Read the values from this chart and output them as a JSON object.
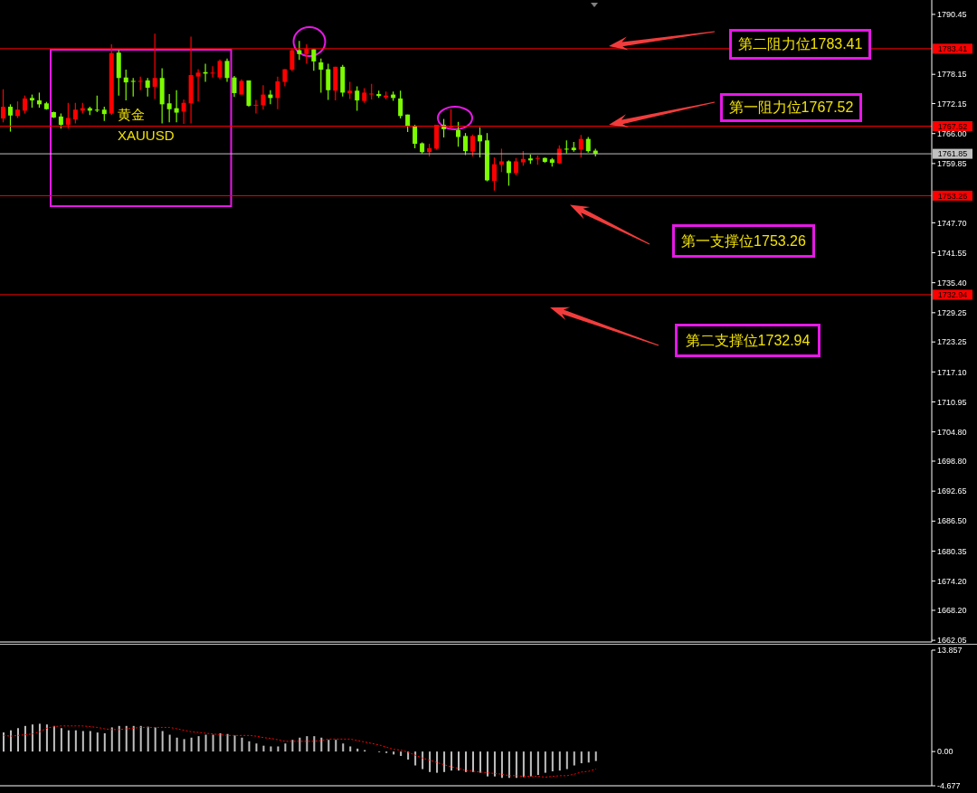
{
  "chart_data": [
    {
      "type": "candlestick",
      "categories": [
        null,
        null,
        null,
        null,
        null,
        null,
        null,
        null,
        null,
        null,
        null,
        null,
        null,
        null,
        null,
        null,
        null,
        null,
        null,
        null,
        null,
        null,
        null,
        null,
        null,
        null,
        null,
        null,
        null,
        null,
        null,
        null,
        null,
        null,
        null,
        null,
        null,
        null,
        null,
        null,
        null,
        null,
        null,
        null,
        null,
        null,
        null,
        null,
        null,
        null,
        null,
        null,
        null,
        null,
        null,
        null,
        null,
        null,
        null,
        null,
        null,
        null,
        null,
        null,
        null,
        null,
        null,
        null,
        null,
        null,
        null,
        null,
        null,
        null,
        null,
        null,
        null,
        null,
        null,
        null,
        null,
        null,
        null,
        null,
        null,
        null,
        null,
        null,
        null,
        null,
        null,
        null,
        null,
        null,
        null,
        null,
        null,
        null,
        null,
        null,
        null,
        null,
        null,
        null,
        null,
        null,
        null,
        null,
        null,
        null,
        null,
        null,
        null,
        null,
        null,
        null,
        null,
        null,
        null,
        null,
        null,
        null,
        null,
        null,
        null,
        null,
        null,
        null,
        null
      ],
      "ohlc": [
        [
          1769.1,
          1775.1,
          1768.3,
          1771.5
        ],
        [
          1771.5,
          1772.0,
          1766.4,
          1769.7
        ],
        [
          1769.6,
          1772.6,
          1769.2,
          1770.9
        ],
        [
          1770.7,
          1773.8,
          1770.1,
          1773.2
        ],
        [
          1773.3,
          1774.0,
          1771.3,
          1772.8
        ],
        [
          1772.8,
          1774.4,
          1771.3,
          1772.0
        ],
        [
          1772.2,
          1772.5,
          1770.9,
          1771.0
        ],
        [
          1770.4,
          1770.5,
          1769.2,
          1769.3
        ],
        [
          1769.5,
          1770.1,
          1767.0,
          1767.8
        ],
        [
          1767.8,
          1772.3,
          1767.0,
          1769.2
        ],
        [
          1768.9,
          1772.3,
          1768.1,
          1770.9
        ],
        [
          1770.7,
          1772.3,
          1770.1,
          1771.2
        ],
        [
          1771.2,
          1771.5,
          1769.8,
          1770.7
        ],
        [
          1770.9,
          1773.8,
          1770.4,
          1770.8
        ],
        [
          1770.9,
          1771.5,
          1768.6,
          1770.0
        ],
        [
          1770.1,
          1784.3,
          1769.8,
          1782.5
        ],
        [
          1782.6,
          1783.1,
          1773.8,
          1777.4
        ],
        [
          1777.5,
          1779.1,
          1772.8,
          1776.5
        ],
        [
          1776.8,
          1777.4,
          1773.6,
          1776.7
        ],
        [
          1776.7,
          1777.7,
          1774.9,
          1776.8
        ],
        [
          1776.9,
          1777.4,
          1773.6,
          1775.4
        ],
        [
          1775.6,
          1786.5,
          1773.1,
          1777.4
        ],
        [
          1777.4,
          1779.4,
          1768.1,
          1772.0
        ],
        [
          1772.2,
          1774.1,
          1768.3,
          1771.0
        ],
        [
          1771.2,
          1774.9,
          1768.3,
          1770.3
        ],
        [
          1770.5,
          1773.0,
          1768.0,
          1772.3
        ],
        [
          1772.2,
          1785.9,
          1768.1,
          1778.0
        ],
        [
          1777.7,
          1779.2,
          1772.6,
          1778.5
        ],
        [
          1778.6,
          1780.3,
          1776.6,
          1778.3
        ],
        [
          1778.4,
          1779.8,
          1777.5,
          1778.5
        ],
        [
          1777.5,
          1781.2,
          1777.1,
          1780.9
        ],
        [
          1780.9,
          1781.4,
          1776.6,
          1777.4
        ],
        [
          1777.5,
          1777.8,
          1773.5,
          1774.3
        ],
        [
          1774.0,
          1777.1,
          1774.0,
          1776.8
        ],
        [
          1776.9,
          1776.9,
          1771.5,
          1771.7
        ],
        [
          1771.8,
          1772.9,
          1770.1,
          1771.9
        ],
        [
          1771.8,
          1775.9,
          1770.9,
          1774.0
        ],
        [
          1774.0,
          1774.9,
          1772.0,
          1773.3
        ],
        [
          1773.3,
          1777.7,
          1771.0,
          1776.7
        ],
        [
          1776.6,
          1779.2,
          1775.7,
          1779.2
        ],
        [
          1779.1,
          1783.4,
          1778.8,
          1783.1
        ],
        [
          1783.1,
          1785.0,
          1781.1,
          1782.3
        ],
        [
          1782.3,
          1784.3,
          1780.3,
          1783.4
        ],
        [
          1783.3,
          1783.3,
          1778.9,
          1780.8
        ],
        [
          1780.6,
          1781.4,
          1774.4,
          1779.1
        ],
        [
          1779.2,
          1780.3,
          1772.9,
          1774.9
        ],
        [
          1774.8,
          1779.7,
          1772.8,
          1779.7
        ],
        [
          1779.7,
          1780.1,
          1773.6,
          1774.4
        ],
        [
          1774.3,
          1776.6,
          1773.1,
          1774.8
        ],
        [
          1774.8,
          1775.7,
          1770.7,
          1772.8
        ],
        [
          1772.7,
          1775.3,
          1772.3,
          1774.4
        ],
        [
          1774.1,
          1776.2,
          1773.0,
          1774.2
        ],
        [
          1774.1,
          1774.8,
          1773.3,
          1773.7
        ],
        [
          1773.4,
          1774.6,
          1773.0,
          1773.8
        ],
        [
          1774.0,
          1774.6,
          1772.7,
          1773.3
        ],
        [
          1773.2,
          1774.8,
          1769.1,
          1769.6
        ],
        [
          1769.9,
          1769.9,
          1766.3,
          1767.5
        ],
        [
          1767.5,
          1767.8,
          1763.0,
          1763.9
        ],
        [
          1764.0,
          1764.2,
          1761.9,
          1762.2
        ],
        [
          1762.2,
          1763.9,
          1761.3,
          1763.0
        ],
        [
          1762.9,
          1767.8,
          1762.7,
          1767.8
        ],
        [
          1767.8,
          1769.0,
          1765.2,
          1766.9
        ],
        [
          1767.3,
          1771.0,
          1767.0,
          1767.5
        ],
        [
          1766.7,
          1768.4,
          1763.3,
          1765.3
        ],
        [
          1765.5,
          1766.1,
          1761.6,
          1762.4
        ],
        [
          1762.3,
          1765.8,
          1761.3,
          1765.5
        ],
        [
          1765.7,
          1767.3,
          1761.1,
          1764.4
        ],
        [
          1764.6,
          1766.1,
          1756.2,
          1756.4
        ],
        [
          1756.3,
          1761.1,
          1754.3,
          1759.7
        ],
        [
          1759.6,
          1762.9,
          1758.1,
          1760.3
        ],
        [
          1760.3,
          1760.5,
          1755.3,
          1757.9
        ],
        [
          1757.9,
          1761.0,
          1757.4,
          1760.3
        ],
        [
          1760.1,
          1762.4,
          1759.4,
          1760.8
        ],
        [
          1760.9,
          1761.7,
          1759.8,
          1760.5
        ],
        [
          1760.9,
          1761.5,
          1759.6,
          1761.0
        ],
        [
          1761.0,
          1761.1,
          1760.0,
          1760.2
        ],
        [
          1760.7,
          1761.0,
          1759.2,
          1760.0
        ],
        [
          1759.9,
          1763.6,
          1759.8,
          1762.9
        ],
        [
          1762.9,
          1764.6,
          1761.9,
          1762.8
        ],
        [
          1763.1,
          1764.3,
          1762.3,
          1762.6
        ],
        [
          1762.7,
          1765.7,
          1761.1,
          1764.9
        ],
        [
          1764.9,
          1765.3,
          1762.1,
          1762.4
        ],
        [
          1762.5,
          1762.9,
          1761.3,
          1761.85
        ],
        null,
        null,
        null,
        null,
        null,
        null,
        null,
        null,
        null,
        null,
        null,
        null,
        null,
        null,
        null,
        null,
        null,
        null,
        null,
        null,
        null,
        null,
        null,
        null,
        null,
        null,
        null,
        null,
        null,
        null,
        null,
        null,
        null,
        null,
        null,
        null,
        null,
        null,
        null,
        null,
        null,
        null,
        null,
        null,
        null,
        null
      ],
      "colors": [
        "#ff0000",
        "#7cfc00",
        "#ff0000",
        "#ff0000",
        "#7cfc00",
        "#7cfc00",
        "#7cfc00",
        "#7cfc00",
        "#7cfc00",
        "#ff0000",
        "#ff0000",
        "#ff0000",
        "#7cfc00",
        "#7cfc00",
        "#7cfc00",
        "#ff0000",
        "#7cfc00",
        "#7cfc00",
        "#7cfc00",
        "#ff0000",
        "#7cfc00",
        "#ff0000",
        "#7cfc00",
        "#7cfc00",
        "#7cfc00",
        "#ff0000",
        "#ff0000",
        "#ff0000",
        "#7cfc00",
        "#ff0000",
        "#ff0000",
        "#7cfc00",
        "#7cfc00",
        "#ff0000",
        "#7cfc00",
        "#ff0000",
        "#ff0000",
        "#7cfc00",
        "#ff0000",
        "#ff0000",
        "#ff0000",
        "#7cfc00",
        "#ff0000",
        "#7cfc00",
        "#7cfc00",
        "#7cfc00",
        "#ff0000",
        "#7cfc00",
        "#ff0000",
        "#7cfc00",
        "#ff0000",
        "#ff0000",
        "#7cfc00",
        "#ff0000",
        "#7cfc00",
        "#7cfc00",
        "#7cfc00",
        "#7cfc00",
        "#7cfc00",
        "#ff0000",
        "#ff0000",
        "#7cfc00",
        "#ff0000",
        "#7cfc00",
        "#7cfc00",
        "#ff0000",
        "#7cfc00",
        "#7cfc00",
        "#ff0000",
        "#ff0000",
        "#7cfc00",
        "#ff0000",
        "#ff0000",
        "#7cfc00",
        "#ff0000",
        "#7cfc00",
        "#7cfc00",
        "#ff0000",
        "#7cfc00",
        "#7cfc00",
        "#ff0000",
        "#7cfc00",
        "#7cfc00",
        null,
        null,
        null,
        null,
        null,
        null,
        null,
        null,
        null,
        null,
        null,
        null,
        null,
        null,
        null,
        null,
        null,
        null,
        null,
        null,
        null,
        null,
        null,
        null,
        null,
        null,
        null,
        null,
        null,
        null,
        null,
        null,
        null,
        null,
        null,
        null,
        null,
        null,
        null,
        null,
        null,
        null,
        null,
        null,
        null,
        null
      ],
      "ylim": [
        1661.7,
        1793.4
      ],
      "yticks": [
        1790.45,
        1778.15,
        1772.15,
        {
          "value": 1766,
          "label": "1766.00"
        },
        1759.85,
        {
          "value": 1747.7,
          "label": "1747.70"
        },
        1741.55,
        {
          "value": 1735.4,
          "label": "1735.40"
        },
        1729.25,
        1723.25,
        {
          "value": 1717.1,
          "label": "1717.10"
        },
        1710.95,
        {
          "value": 1704.8,
          "label": "1704.80"
        },
        {
          "value": 1698.8,
          "label": "1698.80"
        },
        1692.65,
        {
          "value": 1686.5,
          "label": "1686.50"
        },
        1680.35,
        {
          "value": 1674.2,
          "label": "1674.20"
        },
        {
          "value": 1668.2,
          "label": "1668.20"
        },
        1662.05
      ],
      "tick_labels": "y",
      "ref_lines": [
        {
          "axis": "y",
          "value": 1783.41,
          "label": "1783.41",
          "color": "#ff0000"
        },
        {
          "axis": "y",
          "value": 1767.52,
          "label": "1767.52",
          "color": "#ff0000"
        },
        {
          "axis": "y",
          "value": 1761.85,
          "label": "1761.85",
          "color": "#c0c0c0"
        },
        {
          "axis": "y",
          "value": 1753.26,
          "label": "1753.26",
          "color": "#ff0000"
        },
        {
          "axis": "y",
          "value": 1732.94,
          "label": "1732.94",
          "color": "#ff0000"
        }
      ],
      "annotations": [
        {
          "text": "第二阻力位1783.41",
          "y": 1783.41
        },
        {
          "text": "第一阻力位1767.52",
          "y": 1767.52
        },
        {
          "text": "第一支撑位1753.26",
          "y": 1753.26
        },
        {
          "text": "第二支撑位1732.94",
          "y": 1732.94
        },
        "黄金",
        "XAUUSD"
      ]
    },
    {
      "type": "bar",
      "categories": [
        null,
        null,
        null,
        null,
        null,
        null,
        null,
        null,
        null,
        null,
        null,
        null,
        null,
        null,
        null,
        null,
        null,
        null,
        null,
        null,
        null,
        null,
        null,
        null,
        null,
        null,
        null,
        null,
        null,
        null,
        null,
        null,
        null,
        null,
        null,
        null,
        null,
        null,
        null,
        null,
        null,
        null,
        null,
        null,
        null,
        null,
        null,
        null,
        null,
        null,
        null,
        null,
        null,
        null,
        null,
        null,
        null,
        null,
        null,
        null,
        null,
        null,
        null,
        null,
        null,
        null,
        null,
        null,
        null,
        null,
        null,
        null,
        null,
        null,
        null,
        null,
        null,
        null,
        null,
        null,
        null,
        null,
        null,
        null,
        null,
        null,
        null,
        null,
        null,
        null,
        null,
        null,
        null,
        null,
        null,
        null,
        null,
        null,
        null,
        null,
        null,
        null,
        null,
        null,
        null,
        null,
        null,
        null,
        null,
        null,
        null,
        null,
        null,
        null,
        null,
        null,
        null,
        null,
        null,
        null,
        null,
        null,
        null,
        null,
        null,
        null,
        null,
        null,
        null
      ],
      "series": [
        {
          "type": "bar",
          "color": "#c0c0c0",
          "values": [
            2.6,
            2.9,
            3.2,
            3.5,
            3.7,
            3.8,
            3.7,
            3.5,
            3.2,
            2.9,
            2.9,
            2.8,
            2.8,
            2.6,
            2.5,
            3.3,
            3.5,
            3.5,
            3.5,
            3.5,
            3.4,
            3.3,
            2.8,
            2.3,
            1.9,
            1.7,
            1.9,
            2.1,
            2.3,
            2.3,
            2.5,
            2.4,
            2.2,
            1.9,
            1.4,
            1.1,
            0.8,
            0.7,
            0.7,
            1.1,
            1.6,
            1.9,
            2.1,
            2.1,
            1.9,
            1.6,
            1.6,
            1.1,
            0.7,
            0.4,
            0.2,
            0,
            -0.1,
            -0.2,
            -0.4,
            -0.6,
            -1.1,
            -1.9,
            -2.4,
            -2.8,
            -2.9,
            -2.8,
            -2.6,
            -2.6,
            -2.8,
            -2.8,
            -2.9,
            -3.4,
            -3.4,
            -3.6,
            -3.6,
            -3.6,
            -3.5,
            -3.4,
            -3.2,
            -2.9,
            -2.7,
            -2.6,
            -2.4,
            -1.9,
            -1.6,
            -1.5,
            -1.3,
            null,
            null,
            null,
            null,
            null,
            null,
            null,
            null,
            null,
            null,
            null,
            null,
            null,
            null,
            null,
            null,
            null,
            null,
            null,
            null,
            null,
            null,
            null,
            null,
            null,
            null,
            null,
            null,
            null,
            null,
            null,
            null,
            null,
            null,
            null,
            null,
            null,
            null,
            null,
            null,
            null,
            null,
            null,
            null,
            null,
            null
          ]
        },
        {
          "type": "line",
          "color": "#ff0000",
          "line_style": "dotted",
          "values": [
            2.2,
            2.1,
            2.2,
            2.3,
            2.4,
            2.7,
            3.2,
            3.4,
            3.5,
            3.5,
            3.5,
            3.5,
            3.4,
            3.3,
            3.1,
            3.0,
            3.0,
            3.1,
            3.2,
            3.3,
            3.3,
            3.3,
            3.3,
            3.3,
            3.1,
            2.9,
            2.7,
            2.6,
            2.5,
            2.4,
            2.3,
            2.2,
            2.2,
            2.2,
            2.2,
            2.1,
            1.9,
            1.8,
            1.6,
            1.4,
            1.4,
            1.4,
            1.4,
            1.4,
            1.5,
            1.7,
            1.7,
            1.7,
            1.7,
            1.5,
            1.3,
            1.1,
            0.9,
            0.6,
            0.3,
            0.2,
            -0.1,
            -0.5,
            -0.9,
            -1.2,
            -1.5,
            -1.8,
            -2.1,
            -2.3,
            -2.6,
            -2.7,
            -2.8,
            -2.9,
            -3.0,
            -3.1,
            -3.3,
            -3.3,
            -3.4,
            -3.4,
            -3.4,
            -3.5,
            -3.4,
            -3.3,
            -3.3,
            -3.1,
            -2.8,
            -2.7,
            -2.4,
            null,
            null,
            null,
            null,
            null,
            null,
            null,
            null,
            null,
            null,
            null,
            null,
            null,
            null,
            null,
            null,
            null,
            null,
            null,
            null,
            null,
            null,
            null,
            null,
            null,
            null,
            null,
            null,
            null,
            null,
            null,
            null,
            null,
            null,
            null,
            null,
            null,
            null,
            null,
            null,
            null,
            null,
            null,
            null,
            null,
            null
          ]
        }
      ],
      "ylim": [
        -4.677,
        13.857
      ],
      "yticks": [
        13.857,
        {
          "value": 0,
          "label": "0.00"
        },
        -4.677
      ],
      "tick_labels": "y",
      "marker": "none"
    }
  ]
}
